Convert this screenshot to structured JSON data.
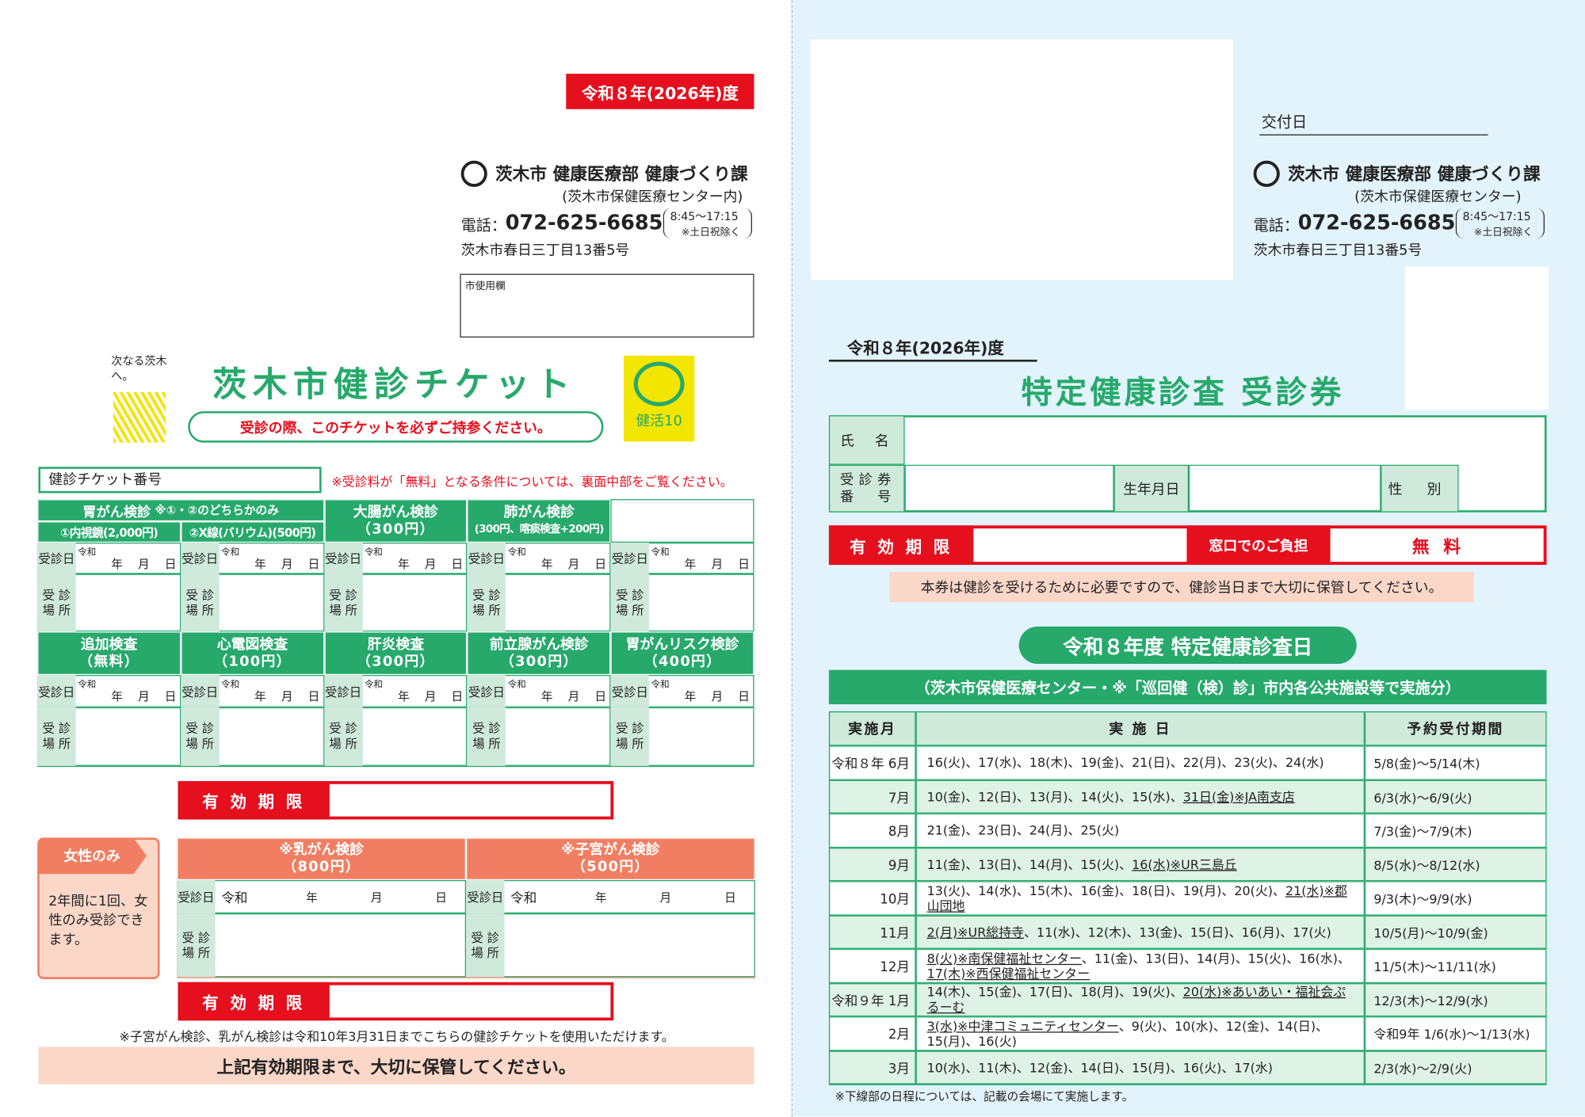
{
  "left": {
    "fiscal_year": "令和８年(2026年)度",
    "org": "茨木市 健康医療部 健康づくり課",
    "org_sub": "(茨木市保健医療センター内)",
    "tel_label": "電話：",
    "tel": "072-625-6685",
    "hours": "8:45～17:15",
    "hours_note": "※土日祝除く",
    "address": "茨木市春日三丁目13番5号",
    "office_use": "市使用欄",
    "slogan": "次なる茨木へ。",
    "title": "茨木市健診チケット",
    "subtitle": "受診の際、このチケットを必ずご持参ください。",
    "logo_text": "健活10",
    "ticket_no": "健診チケット番号",
    "free_note": "※受診料が「無料」となる条件については、裏面中部をご覧ください。",
    "labels": {
      "date": "受診日",
      "era": "令和",
      "year": "年",
      "month": "月",
      "day": "日",
      "place": "受 診\n場 所"
    },
    "stomach": {
      "name": "胃がん検診",
      "note": "※①・②のどちらかのみ",
      "options": [
        "①内視鏡(2,000円)",
        "②X線(バリウム)(500円)"
      ]
    },
    "row1": [
      {
        "name": "大腸がん検診",
        "price": "（300円）"
      },
      {
        "name": "肺がん検診",
        "price": "(300円、喀痰検査+200円)"
      }
    ],
    "row2": [
      {
        "name": "追加検査",
        "price": "（無料）"
      },
      {
        "name": "心電図検査",
        "price": "（100円）"
      },
      {
        "name": "肝炎検査",
        "price": "（300円）"
      },
      {
        "name": "前立腺がん検診",
        "price": "（300円）"
      },
      {
        "name": "胃がんリスク検診",
        "price": "（400円）"
      }
    ],
    "validity": "有 効 期 限",
    "women_tab": "女性のみ",
    "women_text": "2年間に1回、女性のみ受診できます。",
    "women": [
      {
        "name": "※乳がん検診",
        "price": "（800円）"
      },
      {
        "name": "※子宮がん検診",
        "price": "（500円）"
      }
    ],
    "women_note": "※子宮がん検診、乳がん検診は令和10年3月31日までこちらの健診チケットを使用いただけます。",
    "keep_banner": "上記有効期限まで、大切に保管してください。"
  },
  "right": {
    "issue_date": "交付日",
    "org": "茨木市 健康医療部 健康づくり課",
    "org_sub": "(茨木市保健医療センター)",
    "tel_label": "電話：",
    "tel": "072-625-6685",
    "hours": "8:45～17:15",
    "hours_note": "※土日祝除く",
    "address": "茨木市春日三丁目13番5号",
    "fiscal_year": "令和８年(2026年)度",
    "title": "特定健康診査 受診券",
    "name_label": "氏 名",
    "number_label": "受診券\n番　号",
    "birth_label": "生年月日",
    "sex_label": "性 別",
    "validity": "有 効 期 限",
    "charge_label": "窓口でのご負担",
    "charge": "無 料",
    "keep_note": "本券は健診を受けるために必要ですので、健診当日まで大切に保管してください。",
    "schedule_title": "令和８年度 特定健康診査日",
    "schedule_sub": "（茨木市保健医療センター・※「巡回健（検）診」市内各公共施設等で実施分）",
    "table": {
      "headers": [
        "実施月",
        "実 施 日",
        "予約受付期間"
      ],
      "rows": [
        {
          "month": "令和８年 6月",
          "days": [
            {
              "text": "16(火)、17(水)、18(木)、19(金)、21(日)、22(月)、23(火)、24(水)"
            }
          ],
          "period": "5/8(金)～5/14(木)"
        },
        {
          "month": "7月",
          "days": [
            {
              "text": "10(金)、12(日)、13(月)、14(火)、15(水)、"
            },
            {
              "text": "31日(金)※JA南支店",
              "underline": true
            }
          ],
          "period": "6/3(水)～6/9(火)"
        },
        {
          "month": "8月",
          "days": [
            {
              "text": "21(金)、23(日)、24(月)、25(火)"
            }
          ],
          "period": "7/3(金)～7/9(木)"
        },
        {
          "month": "9月",
          "days": [
            {
              "text": "11(金)、13(日)、14(月)、15(火)、"
            },
            {
              "text": "16(水)※UR三島丘",
              "underline": true
            }
          ],
          "period": "8/5(水)～8/12(水)"
        },
        {
          "month": "10月",
          "days": [
            {
              "text": "13(火)、14(水)、15(木)、16(金)、18(日)、19(月)、20(火)、"
            },
            {
              "text": "21(水)※郡山団地",
              "underline": true
            }
          ],
          "period": "9/3(木)～9/9(水)"
        },
        {
          "month": "11月",
          "days": [
            {
              "text": "2(月)※UR総持寺",
              "underline": true
            },
            {
              "text": "、11(水)、12(木)、13(金)、15(日)、16(月)、17(火)"
            }
          ],
          "period": "10/5(月)～10/9(金)"
        },
        {
          "month": "12月",
          "days": [
            {
              "text": "8(火)※南保健福祉センター",
              "underline": true
            },
            {
              "text": "、11(金)、13(日)、14(月)、15(火)、16(水)、"
            },
            {
              "text": "17(木)※西保健福祉センター",
              "underline": true
            }
          ],
          "period": "11/5(木)～11/11(水)"
        },
        {
          "month": "令和９年 1月",
          "days": [
            {
              "text": "14(木)、15(金)、17(日)、18(月)、19(火)、"
            },
            {
              "text": "20(水)※あいあい・福祉会ぷるーむ",
              "underline": true
            }
          ],
          "period": "12/3(木)～12/9(水)"
        },
        {
          "month": "2月",
          "days": [
            {
              "text": "3(水)※中津コミュニティセンター",
              "underline": true
            },
            {
              "text": "、9(火)、10(水)、12(金)、14(日)、15(月)、16(火)"
            }
          ],
          "period": "令和9年 1/6(水)～1/13(水)"
        },
        {
          "month": "3月",
          "days": [
            {
              "text": "10(水)、11(木)、12(金)、14(日)、15(月)、16(火)、17(水)"
            }
          ],
          "period": "2/3(水)～2/9(火)"
        }
      ]
    },
    "footnote": "※下線部の日程については、記載の会場にて実施します。"
  }
}
